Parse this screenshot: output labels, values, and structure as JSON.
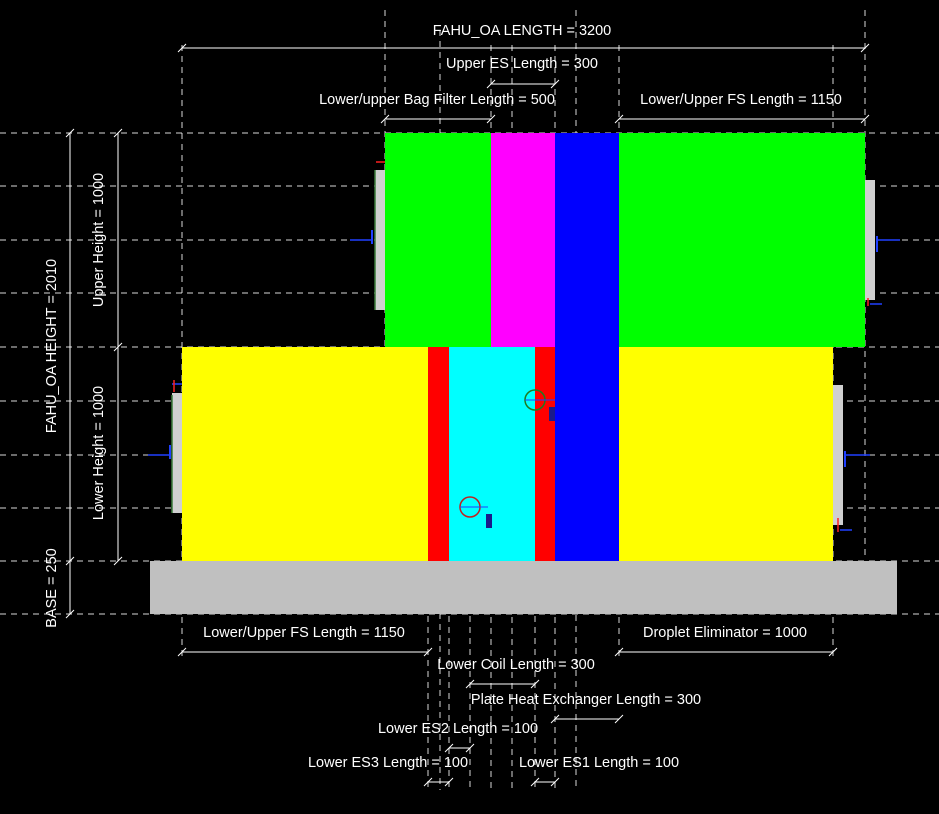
{
  "colors": {
    "background": "#000000",
    "filter_section": "#00ff00",
    "bag_filter": "#ff00ff",
    "plate_heat_exchanger": "#0000ff",
    "lower_fs": "#ffff00",
    "coil": "#00ffff",
    "empty_section": "#ff0000",
    "base": "#c0c0c0",
    "damper": "#d0d0d0",
    "line": "#ffffff"
  },
  "labels": {
    "total_length": "FAHU_OA LENGTH = 3200",
    "upper_es_length": "Upper ES Length = 300",
    "bag_filter_length": "Lower/upper Bag Filter Length = 500",
    "upper_fs_length_top": "Lower/Upper FS Length = 1150",
    "lower_fs_length_bottom": "Lower/Upper FS Length = 1150",
    "droplet_eliminator": "Droplet Eliminator = 1000",
    "lower_coil_length": "Lower Coil Length = 300",
    "plate_hx_length": "Plate Heat Exchanger Length = 300",
    "lower_es2_length": "Lower ES2 Length = 100",
    "lower_es3_length": "Lower ES3 Length = 100",
    "lower_es1_length": "Lower ES1 Length = 100",
    "total_height": "FAHU_OA HEIGHT = 2010",
    "upper_height": "Upper Height = 1000",
    "lower_height": "Lower Height = 1000",
    "base": "BASE = 250"
  },
  "icons": [
    "damper-icon",
    "fan-icon",
    "connection-marker-icon"
  ]
}
